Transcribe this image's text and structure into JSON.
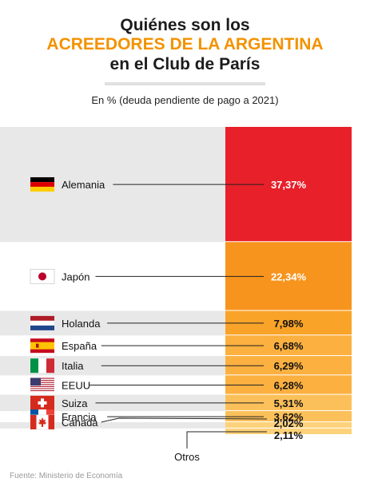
{
  "header": {
    "title_line1": "Quiénes son los",
    "title_line2": "ACREEDORES DE LA ARGENTINA",
    "title_line3": "en el Club de París",
    "subtitle": "En % (deuda pendiente de pago a 2021)"
  },
  "source": "Fuente: Ministerio de Economía",
  "colors": {
    "accent": "#f39200",
    "band_gray": "#e8e8e8"
  },
  "chart_data": {
    "type": "bar",
    "orientation": "stacked-100",
    "categories": [
      "Alemania",
      "Japón",
      "Holanda",
      "España",
      "Italia",
      "EEUU",
      "Suiza",
      "Francia",
      "Canadá",
      "Otros"
    ],
    "values": [
      37.37,
      22.34,
      7.98,
      6.68,
      6.29,
      6.28,
      5.31,
      3.62,
      2.02,
      2.11
    ],
    "value_labels": [
      "37,37%",
      "22,34%",
      "7,98%",
      "6,68%",
      "6,29%",
      "6,28%",
      "5,31%",
      "3,62%",
      "2,02%",
      "2,11%"
    ],
    "flags": [
      "germany-flag",
      "japan-flag",
      "netherlands-flag",
      "spain-flag",
      "italy-flag",
      "usa-flag",
      "switzerland-flag",
      "france-flag",
      "canada-flag",
      ""
    ],
    "segment_colors": [
      "#e8202a",
      "#f7941d",
      "#f9a328",
      "#fbb040",
      "#fbb040",
      "#fbb040",
      "#fcc05a",
      "#fcc05a",
      "#fdd27a",
      "#fdd27a"
    ],
    "ylim": [
      0,
      100
    ]
  }
}
